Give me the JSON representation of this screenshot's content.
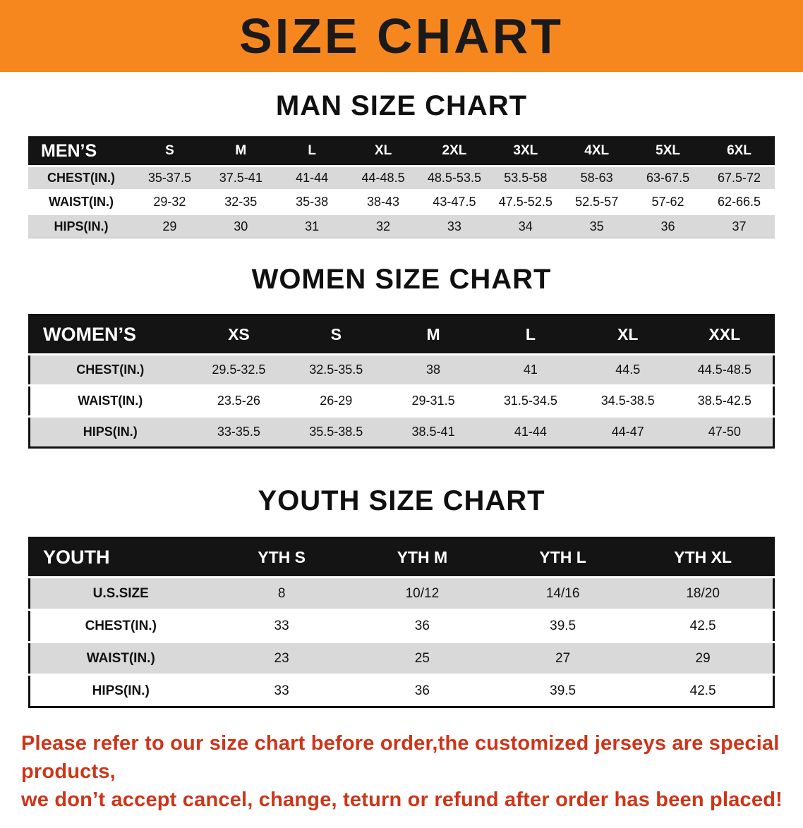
{
  "banner": {
    "title": "SIZE CHART"
  },
  "sections": [
    {
      "id": "men",
      "heading": "MAN SIZE CHART",
      "table": {
        "title": "MEN’S",
        "columns": [
          "S",
          "M",
          "L",
          "XL",
          "2XL",
          "3XL",
          "4XL",
          "5XL",
          "6XL"
        ],
        "rows": [
          {
            "label": "CHEST(IN.)",
            "values": [
              "35-37.5",
              "37.5-41",
              "41-44",
              "44-48.5",
              "48.5-53.5",
              "53.5-58",
              "58-63",
              "63-67.5",
              "67.5-72"
            ]
          },
          {
            "label": "WAIST(IN.)",
            "values": [
              "29-32",
              "32-35",
              "35-38",
              "38-43",
              "43-47.5",
              "47.5-52.5",
              "52.5-57",
              "57-62",
              "62-66.5"
            ]
          },
          {
            "label": "HIPS(IN.)",
            "values": [
              "29",
              "30",
              "31",
              "32",
              "33",
              "34",
              "35",
              "36",
              "37"
            ]
          }
        ]
      }
    },
    {
      "id": "women",
      "heading": "WOMEN SIZE CHART",
      "table": {
        "title": "WOMEN’S",
        "columns": [
          "XS",
          "S",
          "M",
          "L",
          "XL",
          "XXL"
        ],
        "rows": [
          {
            "label": "CHEST(IN.)",
            "values": [
              "29.5-32.5",
              "32.5-35.5",
              "38",
              "41",
              "44.5",
              "44.5-48.5"
            ]
          },
          {
            "label": "WAIST(IN.)",
            "values": [
              "23.5-26",
              "26-29",
              "29-31.5",
              "31.5-34.5",
              "34.5-38.5",
              "38.5-42.5"
            ]
          },
          {
            "label": "HIPS(IN.)",
            "values": [
              "33-35.5",
              "35.5-38.5",
              "38.5-41",
              "41-44",
              "44-47",
              "47-50"
            ]
          }
        ]
      }
    },
    {
      "id": "youth",
      "heading": "YOUTH SIZE CHART",
      "table": {
        "title": "YOUTH",
        "columns": [
          "YTH S",
          "YTH M",
          "YTH L",
          "YTH XL"
        ],
        "rows": [
          {
            "label": "U.S.SIZE",
            "values": [
              "8",
              "10/12",
              "14/16",
              "18/20"
            ]
          },
          {
            "label": "CHEST(IN.)",
            "values": [
              "33",
              "36",
              "39.5",
              "42.5"
            ]
          },
          {
            "label": "WAIST(IN.)",
            "values": [
              "23",
              "25",
              "27",
              "29"
            ]
          },
          {
            "label": "HIPS(IN.)",
            "values": [
              "33",
              "36",
              "39.5",
              "42.5"
            ]
          }
        ]
      }
    }
  ],
  "disclaimer": {
    "line1": "Please refer to our size chart before order,the customized jerseys are special products,",
    "line2": "we don’t accept cancel, change, teturn or refund after order has been placed!"
  },
  "colors": {
    "banner_bg": "#f6871f",
    "header_bg": "#141414",
    "row_alt": "#d9d9d9",
    "disclaimer_red": "#cf3417"
  }
}
